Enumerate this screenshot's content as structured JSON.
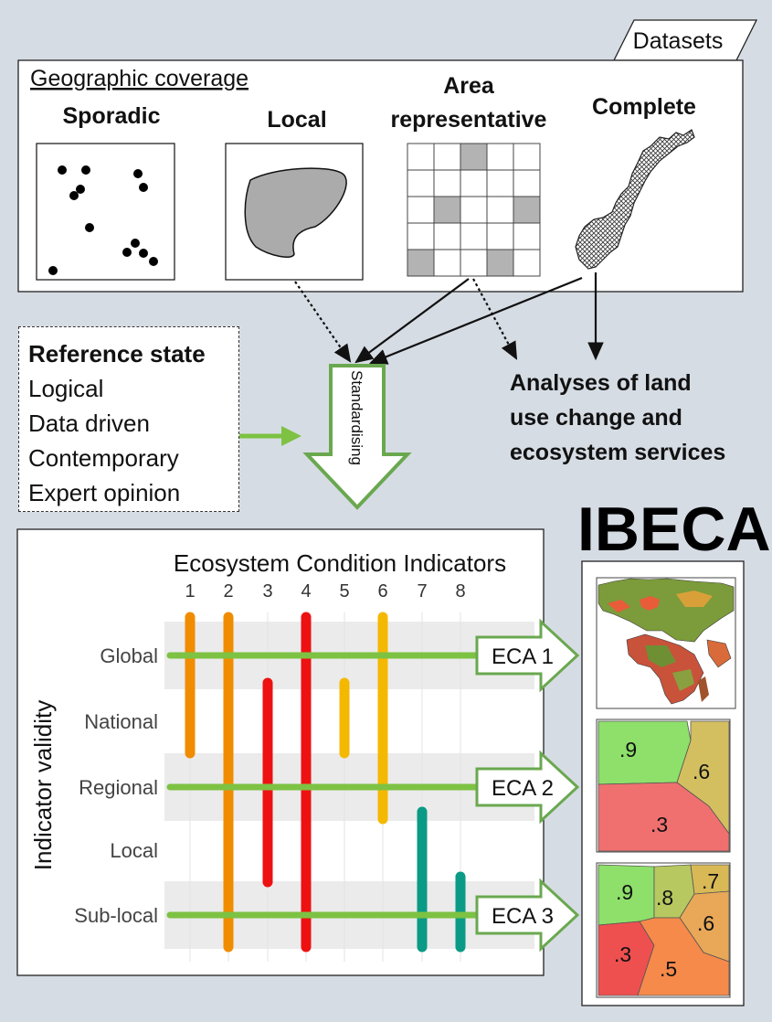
{
  "datasets_tab": "Datasets",
  "geo_heading": "Geographic coverage",
  "coverage_types": {
    "sporadic": "Sporadic",
    "local": "Local",
    "area_line1": "Area",
    "area_line2": "representative",
    "complete": "Complete"
  },
  "reference_state": {
    "title": "Reference state",
    "items": [
      "Logical",
      "Data driven",
      "Contemporary",
      "Expert opinion"
    ]
  },
  "standardising": "Standardising",
  "analyses": [
    "Analyses of land",
    "use change and",
    "ecosystem services"
  ],
  "ibeca": "IBECA",
  "chart_data": {
    "type": "diagram",
    "title": "Ecosystem Condition Indicators",
    "ylabel": "Indicator validity",
    "indicators": [
      "1",
      "2",
      "3",
      "4",
      "5",
      "6",
      "7",
      "8"
    ],
    "levels": [
      "Global",
      "National",
      "Regional",
      "Local",
      "Sub-local"
    ],
    "indicator_ranges": [
      {
        "indicator": "1",
        "from": "Global",
        "to": "National",
        "color": "#f08c00"
      },
      {
        "indicator": "2",
        "from": "Global",
        "to": "Sub-local",
        "color": "#f08c00"
      },
      {
        "indicator": "3",
        "from": "National",
        "to": "Local",
        "color": "#ee1111"
      },
      {
        "indicator": "4",
        "from": "Global",
        "to": "Sub-local",
        "color": "#ee1111"
      },
      {
        "indicator": "5",
        "from": "National",
        "to": "National",
        "color": "#f5b800"
      },
      {
        "indicator": "6",
        "from": "Global",
        "to": "Regional",
        "color": "#f5b800"
      },
      {
        "indicator": "7",
        "from": "Local",
        "to": "Sub-local",
        "color": "#0a9a85"
      },
      {
        "indicator": "8",
        "from": "Sub-local",
        "to": "Sub-local",
        "color": "#0a9a85"
      }
    ],
    "accounts": [
      {
        "label": "ECA 1",
        "level": "Global"
      },
      {
        "label": "ECA 2",
        "level": "Regional"
      },
      {
        "label": "ECA 3",
        "level": "Sub-local"
      }
    ]
  },
  "eca2_values": [
    ".9",
    ".6",
    ".3"
  ],
  "eca3_values": [
    ".9",
    ".8",
    ".7",
    ".6",
    ".3",
    ".5"
  ],
  "colors": {
    "background": "#d6dce4",
    "green": "#7dc242",
    "green_dark": "#6aa84f",
    "cell_grey": "#b3b3b3"
  }
}
